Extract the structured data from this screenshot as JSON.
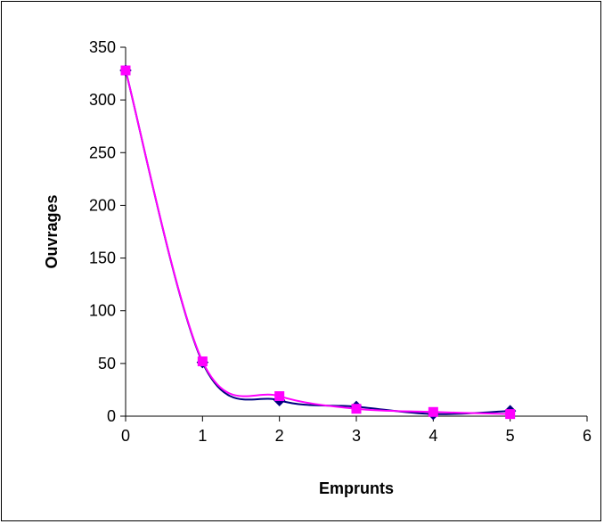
{
  "chart_data": {
    "type": "line",
    "title": "",
    "xlabel": "Emprunts",
    "ylabel": "Ouvrages",
    "xlim": [
      0,
      6
    ],
    "ylim": [
      0,
      350
    ],
    "x_ticks": [
      0,
      1,
      2,
      3,
      4,
      5,
      6
    ],
    "y_ticks": [
      0,
      50,
      100,
      150,
      200,
      250,
      300,
      350
    ],
    "grid": false,
    "legend": "none",
    "series": [
      {
        "color": "#000080",
        "marker": "diamond",
        "x": [
          0,
          1,
          2,
          3,
          4,
          5
        ],
        "values": [
          328,
          51,
          15,
          9,
          2,
          5
        ]
      },
      {
        "color": "#ff00ff",
        "marker": "square",
        "x": [
          0,
          1,
          2,
          3,
          4,
          5
        ],
        "values": [
          328,
          52,
          19,
          7,
          4,
          2
        ]
      }
    ]
  }
}
